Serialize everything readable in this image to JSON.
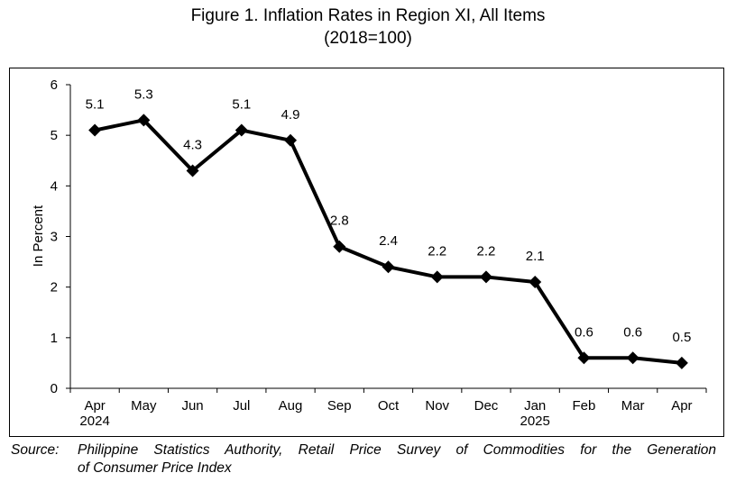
{
  "title_line1": "Figure 1. Inflation Rates in Region XI, All Items",
  "title_line2": "(2018=100)",
  "source": {
    "label": "Source:",
    "line1": "Philippine Statistics Authority, Retail Price Survey of Commodities for the Generation",
    "line2": "of Consumer Price Index"
  },
  "chart_data": {
    "type": "line",
    "title": "Figure 1. Inflation Rates in Region XI, All Items (2018=100)",
    "xlabel": "",
    "ylabel": "In Percent",
    "ylim": [
      0,
      6
    ],
    "yticks": [
      0,
      1,
      2,
      3,
      4,
      5,
      6
    ],
    "grid": false,
    "legend": "none",
    "categories": [
      "Apr 2024",
      "May",
      "Jun",
      "Jul",
      "Aug",
      "Sep",
      "Oct",
      "Nov",
      "Dec",
      "Jan 2025",
      "Feb",
      "Mar",
      "Apr"
    ],
    "category_labels": [
      [
        "Apr",
        "2024"
      ],
      [
        "May"
      ],
      [
        "Jun"
      ],
      [
        "Jul"
      ],
      [
        "Aug"
      ],
      [
        "Sep"
      ],
      [
        "Oct"
      ],
      [
        "Nov"
      ],
      [
        "Dec"
      ],
      [
        "Jan",
        "2025"
      ],
      [
        "Feb"
      ],
      [
        "Mar"
      ],
      [
        "Apr"
      ]
    ],
    "series": [
      {
        "values": [
          5.1,
          5.3,
          4.3,
          5.1,
          4.9,
          2.8,
          2.4,
          2.2,
          2.2,
          2.1,
          0.6,
          0.6,
          0.5
        ],
        "labels": [
          "5.1",
          "5.3",
          "4.3",
          "5.1",
          "4.9",
          "2.8",
          "2.4",
          "2.2",
          "2.2",
          "2.1",
          "0.6",
          "0.6",
          "0.5"
        ],
        "color": "#000000",
        "marker": "diamond"
      }
    ]
  }
}
